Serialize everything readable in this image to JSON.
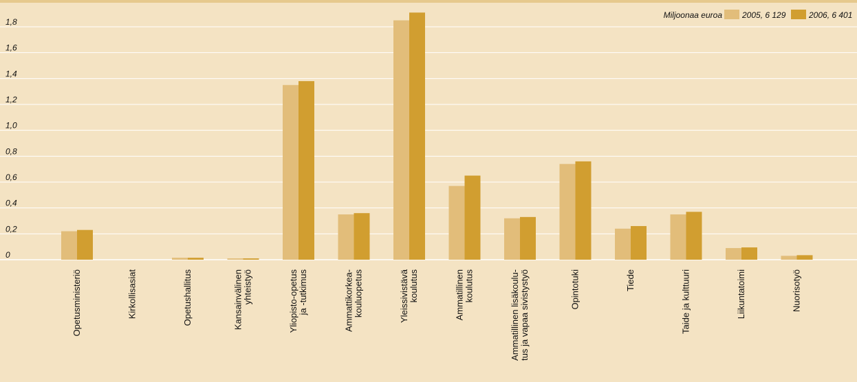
{
  "chart_data": {
    "type": "bar",
    "title": "",
    "unit_label": "Miljoonaa euroa",
    "categories": [
      [
        "Opetusministeriö"
      ],
      [
        "Kirkollisasiat"
      ],
      [
        "Opetushallitus"
      ],
      [
        "Kansainvälinen",
        "yhteistyö"
      ],
      [
        "Yliopisto-opetus",
        "ja -tutkimus"
      ],
      [
        "Ammattikorkea-",
        "kouluopetus"
      ],
      [
        "Yleissivistävä",
        "koulutus"
      ],
      [
        "Ammatillinen",
        "koulutus"
      ],
      [
        "Ammatillinen lisäkoulu-",
        "tus ja vapaa sivistystyö"
      ],
      [
        "Opintotuki"
      ],
      [
        "Tiede"
      ],
      [
        "Taide ja kulttuuri"
      ],
      [
        "Liikuntatoimi"
      ],
      [
        "Nuorisotyö"
      ]
    ],
    "series": [
      {
        "name": "2005, 6 129",
        "color": "#e2bd7a",
        "values": [
          0.22,
          0,
          0.015,
          0.01,
          1.35,
          0.35,
          1.85,
          0.57,
          0.32,
          0.74,
          0.24,
          0.35,
          0.09,
          0.03
        ]
      },
      {
        "name": "2006, 6 401",
        "color": "#d19e30",
        "values": [
          0.23,
          0,
          0.015,
          0.01,
          1.38,
          0.36,
          1.91,
          0.65,
          0.33,
          0.76,
          0.26,
          0.37,
          0.095,
          0.035
        ]
      }
    ],
    "y_ticks": [
      "0",
      "0,2",
      "0,4",
      "0,6",
      "0,8",
      "1,0",
      "1,2",
      "1,4",
      "1,6",
      "1,8"
    ],
    "ylim": [
      0,
      1.9
    ],
    "grid": true,
    "legend_position": "top-right"
  }
}
